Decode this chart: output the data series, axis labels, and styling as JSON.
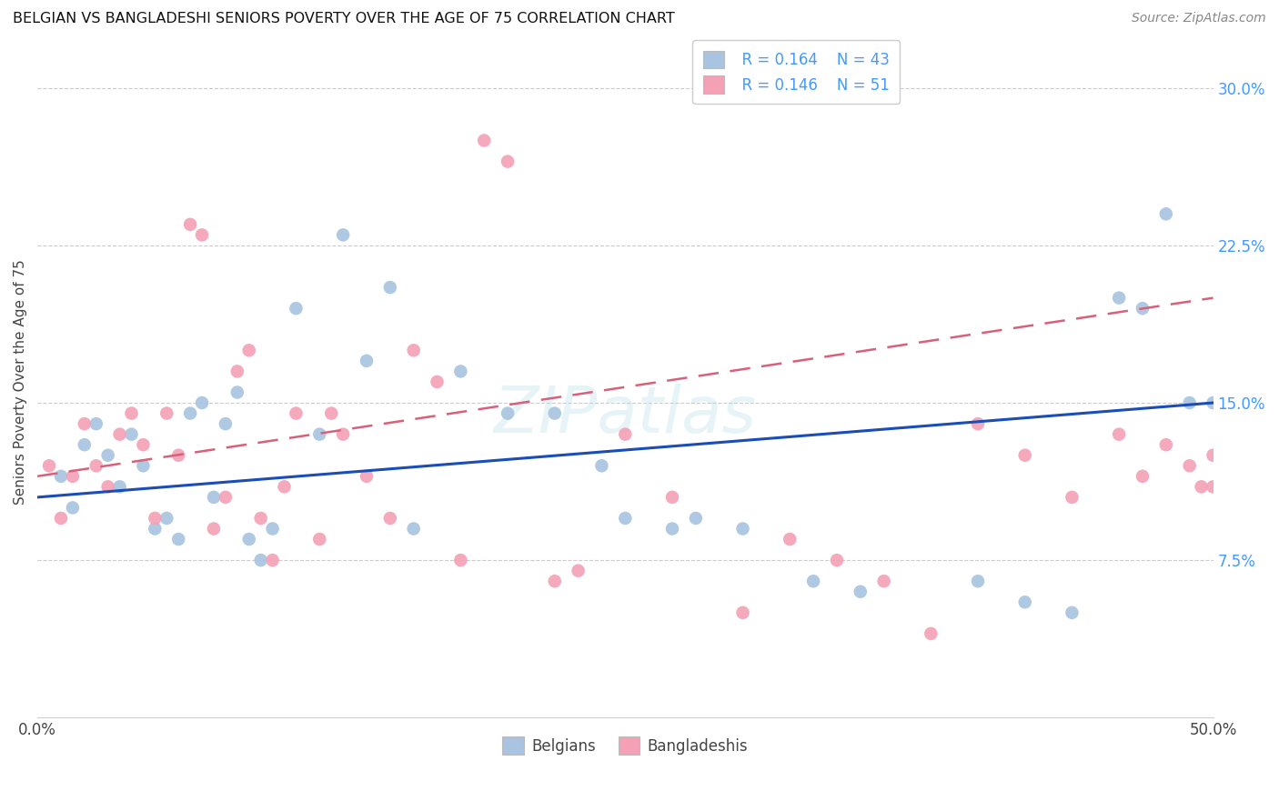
{
  "title": "BELGIAN VS BANGLADESHI SENIORS POVERTY OVER THE AGE OF 75 CORRELATION CHART",
  "source": "Source: ZipAtlas.com",
  "ylabel": "Seniors Poverty Over the Age of 75",
  "xlim": [
    0,
    50
  ],
  "ylim": [
    0,
    32
  ],
  "yticks": [
    0,
    7.5,
    15.0,
    22.5,
    30.0
  ],
  "ytick_labels": [
    "",
    "7.5%",
    "15.0%",
    "22.5%",
    "30.0%"
  ],
  "legend_r1": "R = 0.164",
  "legend_n1": "N = 43",
  "legend_r2": "R = 0.146",
  "legend_n2": "N = 51",
  "belgian_color": "#a8c4e0",
  "bangladeshi_color": "#f4a0b5",
  "belgian_line_color": "#1a4db5",
  "bangladeshi_line_color": "#d9607a",
  "watermark": "ZIPatlas",
  "belgians_label": "Belgians",
  "bangladeshis_label": "Bangladeshis",
  "belgians_x": [
    1.0,
    1.5,
    2.0,
    2.5,
    3.0,
    3.5,
    4.0,
    4.5,
    5.0,
    5.5,
    6.0,
    6.5,
    7.0,
    7.5,
    8.0,
    8.5,
    9.0,
    9.5,
    10.0,
    11.0,
    12.0,
    13.0,
    14.0,
    15.0,
    16.0,
    18.0,
    20.0,
    22.0,
    24.0,
    25.0,
    27.0,
    28.0,
    30.0,
    33.0,
    35.0,
    40.0,
    42.0,
    44.0,
    46.0,
    47.0,
    48.0,
    49.0,
    50.0
  ],
  "belgians_y": [
    11.5,
    10.0,
    13.0,
    14.0,
    12.5,
    11.0,
    13.5,
    12.0,
    9.0,
    9.5,
    8.5,
    14.5,
    15.0,
    10.5,
    14.0,
    15.5,
    8.5,
    7.5,
    9.0,
    19.5,
    13.5,
    23.0,
    17.0,
    20.5,
    9.0,
    16.5,
    14.5,
    14.5,
    12.0,
    9.5,
    9.0,
    9.5,
    9.0,
    6.5,
    6.0,
    6.5,
    5.5,
    5.0,
    20.0,
    19.5,
    24.0,
    15.0,
    15.0
  ],
  "bangladeshis_x": [
    0.5,
    1.0,
    1.5,
    2.0,
    2.5,
    3.0,
    3.5,
    4.0,
    4.5,
    5.0,
    5.5,
    6.0,
    6.5,
    7.0,
    7.5,
    8.0,
    8.5,
    9.0,
    9.5,
    10.0,
    10.5,
    11.0,
    12.0,
    12.5,
    13.0,
    14.0,
    15.0,
    16.0,
    17.0,
    18.0,
    19.0,
    20.0,
    22.0,
    23.0,
    25.0,
    27.0,
    30.0,
    32.0,
    34.0,
    36.0,
    38.0,
    40.0,
    42.0,
    44.0,
    46.0,
    47.0,
    48.0,
    49.0,
    49.5,
    50.0,
    50.0
  ],
  "bangladeshis_y": [
    12.0,
    9.5,
    11.5,
    14.0,
    12.0,
    11.0,
    13.5,
    14.5,
    13.0,
    9.5,
    14.5,
    12.5,
    23.5,
    23.0,
    9.0,
    10.5,
    16.5,
    17.5,
    9.5,
    7.5,
    11.0,
    14.5,
    8.5,
    14.5,
    13.5,
    11.5,
    9.5,
    17.5,
    16.0,
    7.5,
    27.5,
    26.5,
    6.5,
    7.0,
    13.5,
    10.5,
    5.0,
    8.5,
    7.5,
    6.5,
    4.0,
    14.0,
    12.5,
    10.5,
    13.5,
    11.5,
    13.0,
    12.0,
    11.0,
    12.5,
    11.0
  ]
}
